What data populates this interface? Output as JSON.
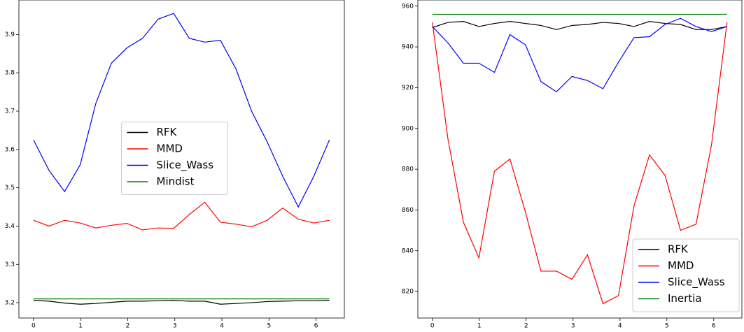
{
  "chart_data": [
    {
      "type": "line",
      "x": [
        0,
        0.3307,
        0.6614,
        0.9921,
        1.3228,
        1.6535,
        1.9842,
        2.3149,
        2.6456,
        2.9762,
        3.3069,
        3.6376,
        3.9683,
        4.299,
        4.6297,
        4.9604,
        5.2911,
        5.6218,
        5.9525,
        6.2832
      ],
      "series": [
        {
          "name": "RFK",
          "color": "#000000",
          "values": [
            3.206,
            3.204,
            3.199,
            3.196,
            3.198,
            3.201,
            3.204,
            3.204,
            3.205,
            3.206,
            3.204,
            3.204,
            3.196,
            3.198,
            3.2,
            3.203,
            3.204,
            3.205,
            3.205,
            3.206
          ]
        },
        {
          "name": "MMD",
          "color": "#ff0000",
          "values": [
            3.415,
            3.4,
            3.415,
            3.408,
            3.395,
            3.402,
            3.407,
            3.39,
            3.395,
            3.394,
            3.43,
            3.462,
            3.41,
            3.405,
            3.398,
            3.415,
            3.447,
            3.418,
            3.408,
            3.415
          ]
        },
        {
          "name": "Slice_Wass",
          "color": "#0000ff",
          "values": [
            3.625,
            3.545,
            3.49,
            3.56,
            3.72,
            3.825,
            3.865,
            3.89,
            3.94,
            3.955,
            3.89,
            3.88,
            3.885,
            3.81,
            3.7,
            3.62,
            3.53,
            3.45,
            3.53,
            3.625
          ]
        },
        {
          "name": "Mindist",
          "color": "#008000",
          "values": [
            3.21,
            3.21,
            3.21,
            3.21,
            3.21,
            3.21,
            3.21,
            3.21,
            3.21,
            3.21,
            3.21,
            3.21,
            3.21,
            3.21,
            3.21,
            3.21,
            3.21,
            3.21,
            3.21,
            3.21
          ]
        }
      ],
      "xlim": [
        -0.31,
        6.6
      ],
      "xticks": [
        0,
        1,
        2,
        3,
        4,
        5,
        6
      ],
      "ylim": [
        3.16,
        3.99
      ],
      "yticks": [
        3.2,
        3.3,
        3.4,
        3.5,
        3.6,
        3.7,
        3.8,
        3.9
      ],
      "legend": "center"
    },
    {
      "type": "line",
      "x": [
        0,
        0.3307,
        0.6614,
        0.9921,
        1.3228,
        1.6535,
        1.9842,
        2.3149,
        2.6456,
        2.9762,
        3.3069,
        3.6376,
        3.9683,
        4.299,
        4.6297,
        4.9604,
        5.2911,
        5.6218,
        5.9525,
        6.2832
      ],
      "series": [
        {
          "name": "RFK",
          "color": "#000000",
          "values": [
            949.5,
            952,
            952.5,
            950,
            951.5,
            952.5,
            951.5,
            950.5,
            948.5,
            950.5,
            951,
            952,
            951.5,
            950,
            952.5,
            951.5,
            951,
            948.5,
            948.5,
            950
          ]
        },
        {
          "name": "MMD",
          "color": "#ff0000",
          "values": [
            952,
            895,
            854,
            836.5,
            879,
            885,
            859,
            830,
            830,
            826,
            838,
            814,
            818,
            862,
            887,
            877,
            850,
            853,
            892,
            952
          ]
        },
        {
          "name": "Slice_Wass",
          "color": "#0000ff",
          "values": [
            950,
            942,
            932,
            932,
            927.5,
            946,
            941,
            923,
            918,
            925.5,
            923.5,
            919.5,
            932.5,
            944.5,
            945,
            951,
            954,
            950,
            947.5,
            950
          ]
        },
        {
          "name": "Inertia",
          "color": "#008000",
          "values": [
            956,
            956,
            956,
            956,
            956,
            956,
            956,
            956,
            956,
            956,
            956,
            956,
            956,
            956,
            956,
            956,
            956,
            956,
            956,
            956
          ]
        }
      ],
      "xlim": [
        -0.31,
        6.6
      ],
      "xticks": [
        0,
        1,
        2,
        3,
        4,
        5,
        6
      ],
      "ylim": [
        807,
        963
      ],
      "yticks": [
        820,
        840,
        860,
        880,
        900,
        920,
        940,
        960
      ],
      "legend": "lower right"
    }
  ]
}
